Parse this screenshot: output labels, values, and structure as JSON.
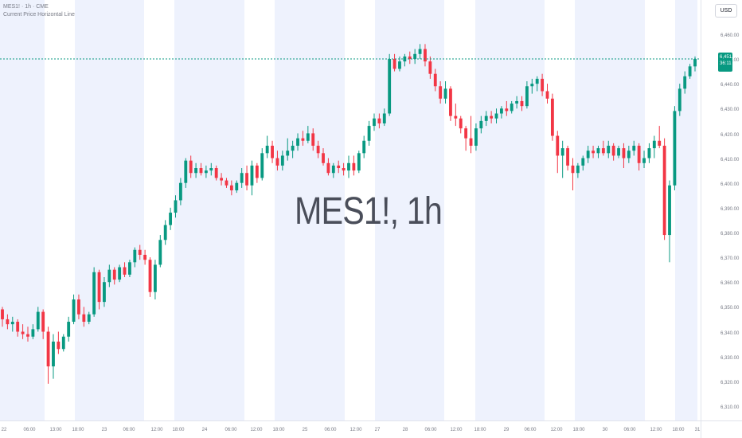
{
  "header": {
    "title": "MES1! · 1h · CME",
    "indicator": "Current Price Horizontal Line"
  },
  "watermark": "MES1!, 1h",
  "currency": "USD",
  "last_price": {
    "price": "6,451.00",
    "countdown": "36:11"
  },
  "colors": {
    "up": "#089981",
    "down": "#f23645",
    "session_shade": "#eef2fd",
    "price_line": "#089981"
  },
  "price_labels": [
    "6,460.00",
    "6,450.00",
    "6,440.00",
    "6,430.00",
    "6,420.00",
    "6,410.00",
    "6,400.00",
    "6,390.00",
    "6,380.00",
    "6,370.00",
    "6,360.00",
    "6,350.00",
    "6,340.00",
    "6,330.00",
    "6,320.00",
    "6,310.00"
  ],
  "time_labels": [
    "22",
    "06:00",
    "13:00",
    "18:00",
    "23",
    "06:00",
    "12:00",
    "18:00",
    "24",
    "06:00",
    "12:00",
    "18:00",
    "25",
    "06:00",
    "12:00",
    "27",
    "28",
    "06:00",
    "12:00",
    "18:00",
    "29",
    "06:00",
    "12:00",
    "18:00",
    "30",
    "06:00",
    "12:00",
    "18:00",
    "31"
  ],
  "chart_data": {
    "type": "candlestick",
    "symbol": "MES1!",
    "interval": "1h",
    "exchange": "CME",
    "y_range": [
      6305,
      6467
    ],
    "last_price": 6451,
    "candles": [
      {
        "o": 6350,
        "h": 6351,
        "l": 6343,
        "c": 6346
      },
      {
        "o": 6346,
        "h": 6348,
        "l": 6342,
        "c": 6344
      },
      {
        "o": 6344,
        "h": 6347,
        "l": 6341,
        "c": 6345
      },
      {
        "o": 6345,
        "h": 6346,
        "l": 6339,
        "c": 6341
      },
      {
        "o": 6341,
        "h": 6344,
        "l": 6338,
        "c": 6340
      },
      {
        "o": 6340,
        "h": 6343,
        "l": 6337,
        "c": 6339
      },
      {
        "o": 6339,
        "h": 6344,
        "l": 6338,
        "c": 6342
      },
      {
        "o": 6342,
        "h": 6351,
        "l": 6341,
        "c": 6349
      },
      {
        "o": 6349,
        "h": 6350,
        "l": 6338,
        "c": 6341
      },
      {
        "o": 6341,
        "h": 6343,
        "l": 6320,
        "c": 6327
      },
      {
        "o": 6327,
        "h": 6340,
        "l": 6322,
        "c": 6337
      },
      {
        "o": 6337,
        "h": 6341,
        "l": 6332,
        "c": 6334
      },
      {
        "o": 6334,
        "h": 6340,
        "l": 6333,
        "c": 6339
      },
      {
        "o": 6339,
        "h": 6347,
        "l": 6337,
        "c": 6345
      },
      {
        "o": 6345,
        "h": 6356,
        "l": 6344,
        "c": 6354
      },
      {
        "o": 6354,
        "h": 6356,
        "l": 6346,
        "c": 6348
      },
      {
        "o": 6348,
        "h": 6351,
        "l": 6343,
        "c": 6345
      },
      {
        "o": 6345,
        "h": 6349,
        "l": 6344,
        "c": 6348
      },
      {
        "o": 6348,
        "h": 6367,
        "l": 6347,
        "c": 6365
      },
      {
        "o": 6365,
        "h": 6366,
        "l": 6350,
        "c": 6353
      },
      {
        "o": 6353,
        "h": 6363,
        "l": 6351,
        "c": 6361
      },
      {
        "o": 6361,
        "h": 6368,
        "l": 6359,
        "c": 6366
      },
      {
        "o": 6366,
        "h": 6367,
        "l": 6360,
        "c": 6362
      },
      {
        "o": 6362,
        "h": 6368,
        "l": 6361,
        "c": 6367
      },
      {
        "o": 6367,
        "h": 6369,
        "l": 6363,
        "c": 6364
      },
      {
        "o": 6364,
        "h": 6370,
        "l": 6363,
        "c": 6369
      },
      {
        "o": 6369,
        "h": 6375,
        "l": 6367,
        "c": 6374
      },
      {
        "o": 6374,
        "h": 6376,
        "l": 6370,
        "c": 6372
      },
      {
        "o": 6372,
        "h": 6374,
        "l": 6368,
        "c": 6370
      },
      {
        "o": 6370,
        "h": 6371,
        "l": 6355,
        "c": 6357
      },
      {
        "o": 6357,
        "h": 6370,
        "l": 6354,
        "c": 6368
      },
      {
        "o": 6368,
        "h": 6380,
        "l": 6367,
        "c": 6378
      },
      {
        "o": 6378,
        "h": 6386,
        "l": 6376,
        "c": 6384
      },
      {
        "o": 6384,
        "h": 6391,
        "l": 6382,
        "c": 6389
      },
      {
        "o": 6389,
        "h": 6396,
        "l": 6387,
        "c": 6394
      },
      {
        "o": 6394,
        "h": 6403,
        "l": 6392,
        "c": 6401
      },
      {
        "o": 6401,
        "h": 6411,
        "l": 6399,
        "c": 6410
      },
      {
        "o": 6410,
        "h": 6412,
        "l": 6403,
        "c": 6405
      },
      {
        "o": 6405,
        "h": 6409,
        "l": 6403,
        "c": 6407
      },
      {
        "o": 6407,
        "h": 6409,
        "l": 6404,
        "c": 6405
      },
      {
        "o": 6405,
        "h": 6408,
        "l": 6403,
        "c": 6406
      },
      {
        "o": 6406,
        "h": 6409,
        "l": 6404,
        "c": 6407
      },
      {
        "o": 6407,
        "h": 6408,
        "l": 6402,
        "c": 6403
      },
      {
        "o": 6403,
        "h": 6405,
        "l": 6400,
        "c": 6402
      },
      {
        "o": 6402,
        "h": 6403,
        "l": 6399,
        "c": 6400
      },
      {
        "o": 6400,
        "h": 6402,
        "l": 6396,
        "c": 6398
      },
      {
        "o": 6398,
        "h": 6402,
        "l": 6397,
        "c": 6401
      },
      {
        "o": 6401,
        "h": 6407,
        "l": 6399,
        "c": 6405
      },
      {
        "o": 6405,
        "h": 6408,
        "l": 6398,
        "c": 6400
      },
      {
        "o": 6400,
        "h": 6410,
        "l": 6396,
        "c": 6408
      },
      {
        "o": 6408,
        "h": 6409,
        "l": 6401,
        "c": 6403
      },
      {
        "o": 6403,
        "h": 6415,
        "l": 6402,
        "c": 6413
      },
      {
        "o": 6413,
        "h": 6420,
        "l": 6411,
        "c": 6416
      },
      {
        "o": 6416,
        "h": 6418,
        "l": 6409,
        "c": 6411
      },
      {
        "o": 6411,
        "h": 6414,
        "l": 6406,
        "c": 6408
      },
      {
        "o": 6408,
        "h": 6414,
        "l": 6406,
        "c": 6412
      },
      {
        "o": 6412,
        "h": 6419,
        "l": 6410,
        "c": 6414
      },
      {
        "o": 6414,
        "h": 6418,
        "l": 6411,
        "c": 6416
      },
      {
        "o": 6416,
        "h": 6421,
        "l": 6414,
        "c": 6419
      },
      {
        "o": 6419,
        "h": 6422,
        "l": 6416,
        "c": 6418
      },
      {
        "o": 6418,
        "h": 6424,
        "l": 6417,
        "c": 6421
      },
      {
        "o": 6421,
        "h": 6423,
        "l": 6414,
        "c": 6416
      },
      {
        "o": 6416,
        "h": 6418,
        "l": 6411,
        "c": 6413
      },
      {
        "o": 6413,
        "h": 6415,
        "l": 6408,
        "c": 6409
      },
      {
        "o": 6409,
        "h": 6411,
        "l": 6404,
        "c": 6405
      },
      {
        "o": 6405,
        "h": 6409,
        "l": 6403,
        "c": 6408
      },
      {
        "o": 6408,
        "h": 6410,
        "l": 6405,
        "c": 6407
      },
      {
        "o": 6407,
        "h": 6409,
        "l": 6404,
        "c": 6406
      },
      {
        "o": 6406,
        "h": 6412,
        "l": 6403,
        "c": 6409
      },
      {
        "o": 6409,
        "h": 6412,
        "l": 6404,
        "c": 6406
      },
      {
        "o": 6406,
        "h": 6414,
        "l": 6405,
        "c": 6413
      },
      {
        "o": 6413,
        "h": 6420,
        "l": 6411,
        "c": 6418
      },
      {
        "o": 6418,
        "h": 6426,
        "l": 6416,
        "c": 6424
      },
      {
        "o": 6424,
        "h": 6429,
        "l": 6422,
        "c": 6427
      },
      {
        "o": 6427,
        "h": 6429,
        "l": 6423,
        "c": 6425
      },
      {
        "o": 6425,
        "h": 6431,
        "l": 6424,
        "c": 6429
      },
      {
        "o": 6429,
        "h": 6453,
        "l": 6428,
        "c": 6451
      },
      {
        "o": 6451,
        "h": 6453,
        "l": 6446,
        "c": 6447
      },
      {
        "o": 6447,
        "h": 6452,
        "l": 6446,
        "c": 6450
      },
      {
        "o": 6450,
        "h": 6453,
        "l": 6448,
        "c": 6452
      },
      {
        "o": 6452,
        "h": 6454,
        "l": 6449,
        "c": 6451
      },
      {
        "o": 6451,
        "h": 6455,
        "l": 6449,
        "c": 6453
      },
      {
        "o": 6453,
        "h": 6457,
        "l": 6451,
        "c": 6455
      },
      {
        "o": 6455,
        "h": 6457,
        "l": 6448,
        "c": 6450
      },
      {
        "o": 6450,
        "h": 6452,
        "l": 6443,
        "c": 6445
      },
      {
        "o": 6445,
        "h": 6447,
        "l": 6438,
        "c": 6440
      },
      {
        "o": 6440,
        "h": 6442,
        "l": 6433,
        "c": 6435
      },
      {
        "o": 6435,
        "h": 6442,
        "l": 6433,
        "c": 6439
      },
      {
        "o": 6439,
        "h": 6440,
        "l": 6426,
        "c": 6428
      },
      {
        "o": 6428,
        "h": 6433,
        "l": 6424,
        "c": 6427
      },
      {
        "o": 6427,
        "h": 6428,
        "l": 6421,
        "c": 6423
      },
      {
        "o": 6423,
        "h": 6424,
        "l": 6414,
        "c": 6419
      },
      {
        "o": 6419,
        "h": 6428,
        "l": 6413,
        "c": 6416
      },
      {
        "o": 6416,
        "h": 6425,
        "l": 6414,
        "c": 6423
      },
      {
        "o": 6423,
        "h": 6428,
        "l": 6421,
        "c": 6426
      },
      {
        "o": 6426,
        "h": 6430,
        "l": 6424,
        "c": 6428
      },
      {
        "o": 6428,
        "h": 6430,
        "l": 6425,
        "c": 6427
      },
      {
        "o": 6427,
        "h": 6431,
        "l": 6425,
        "c": 6429
      },
      {
        "o": 6429,
        "h": 6432,
        "l": 6427,
        "c": 6431
      },
      {
        "o": 6431,
        "h": 6434,
        "l": 6428,
        "c": 6430
      },
      {
        "o": 6430,
        "h": 6434,
        "l": 6429,
        "c": 6433
      },
      {
        "o": 6433,
        "h": 6436,
        "l": 6431,
        "c": 6434
      },
      {
        "o": 6434,
        "h": 6436,
        "l": 6430,
        "c": 6432
      },
      {
        "o": 6432,
        "h": 6442,
        "l": 6431,
        "c": 6440
      },
      {
        "o": 6440,
        "h": 6443,
        "l": 6437,
        "c": 6441
      },
      {
        "o": 6441,
        "h": 6444,
        "l": 6438,
        "c": 6443
      },
      {
        "o": 6443,
        "h": 6445,
        "l": 6436,
        "c": 6438
      },
      {
        "o": 6438,
        "h": 6441,
        "l": 6433,
        "c": 6435
      },
      {
        "o": 6435,
        "h": 6437,
        "l": 6418,
        "c": 6420
      },
      {
        "o": 6420,
        "h": 6422,
        "l": 6405,
        "c": 6412
      },
      {
        "o": 6412,
        "h": 6418,
        "l": 6403,
        "c": 6415
      },
      {
        "o": 6415,
        "h": 6416,
        "l": 6406,
        "c": 6408
      },
      {
        "o": 6408,
        "h": 6411,
        "l": 6398,
        "c": 6405
      },
      {
        "o": 6405,
        "h": 6409,
        "l": 6403,
        "c": 6408
      },
      {
        "o": 6408,
        "h": 6412,
        "l": 6406,
        "c": 6411
      },
      {
        "o": 6411,
        "h": 6416,
        "l": 6409,
        "c": 6414
      },
      {
        "o": 6414,
        "h": 6416,
        "l": 6411,
        "c": 6413
      },
      {
        "o": 6413,
        "h": 6416,
        "l": 6411,
        "c": 6415
      },
      {
        "o": 6415,
        "h": 6418,
        "l": 6412,
        "c": 6413
      },
      {
        "o": 6413,
        "h": 6418,
        "l": 6411,
        "c": 6416
      },
      {
        "o": 6416,
        "h": 6417,
        "l": 6410,
        "c": 6412
      },
      {
        "o": 6412,
        "h": 6416,
        "l": 6411,
        "c": 6415
      },
      {
        "o": 6415,
        "h": 6417,
        "l": 6407,
        "c": 6411
      },
      {
        "o": 6411,
        "h": 6416,
        "l": 6409,
        "c": 6414
      },
      {
        "o": 6414,
        "h": 6418,
        "l": 6412,
        "c": 6416
      },
      {
        "o": 6416,
        "h": 6417,
        "l": 6406,
        "c": 6409
      },
      {
        "o": 6409,
        "h": 6414,
        "l": 6407,
        "c": 6411
      },
      {
        "o": 6411,
        "h": 6417,
        "l": 6409,
        "c": 6415
      },
      {
        "o": 6415,
        "h": 6420,
        "l": 6411,
        "c": 6418
      },
      {
        "o": 6418,
        "h": 6424,
        "l": 6415,
        "c": 6416
      },
      {
        "o": 6416,
        "h": 6419,
        "l": 6378,
        "c": 6380
      },
      {
        "o": 6380,
        "h": 6402,
        "l": 6369,
        "c": 6400
      },
      {
        "o": 6400,
        "h": 6432,
        "l": 6398,
        "c": 6430
      },
      {
        "o": 6430,
        "h": 6441,
        "l": 6428,
        "c": 6439
      },
      {
        "o": 6439,
        "h": 6446,
        "l": 6437,
        "c": 6444
      },
      {
        "o": 6444,
        "h": 6449,
        "l": 6443,
        "c": 6448
      },
      {
        "o": 6448,
        "h": 6452,
        "l": 6446,
        "c": 6451
      }
    ]
  }
}
